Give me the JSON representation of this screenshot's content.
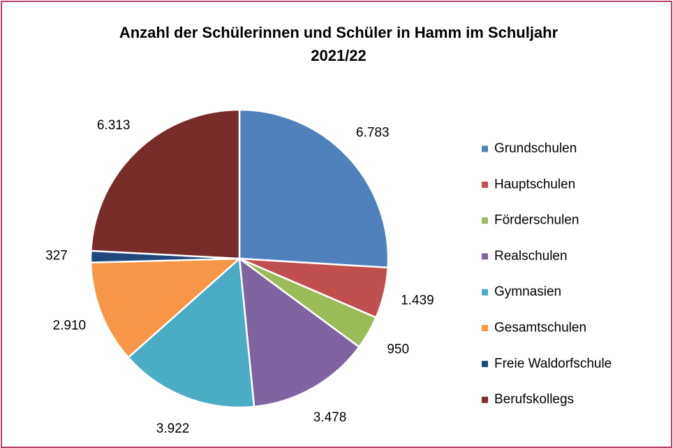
{
  "chart_data": {
    "type": "pie",
    "title": "Anzahl der Schülerinnen und Schüler in Hamm im Schuljahr 2021/22",
    "categories": [
      "Grundschulen",
      "Hauptschulen",
      "Förderschulen",
      "Realschulen",
      "Gymnasien",
      "Gesamtschulen",
      "Freie Waldorfschule",
      "Berufskollegs"
    ],
    "values": [
      6783,
      1439,
      950,
      3478,
      3922,
      2910,
      327,
      6313
    ],
    "value_labels": [
      "6.783",
      "1.439",
      "950",
      "3.478",
      "3.922",
      "2.910",
      "327",
      "6.313"
    ],
    "colors": [
      "#4f81bd",
      "#c0504d",
      "#9bbb59",
      "#8064a2",
      "#4bacc6",
      "#f79646",
      "#1f497d",
      "#772c2a"
    ],
    "legend": "right"
  }
}
